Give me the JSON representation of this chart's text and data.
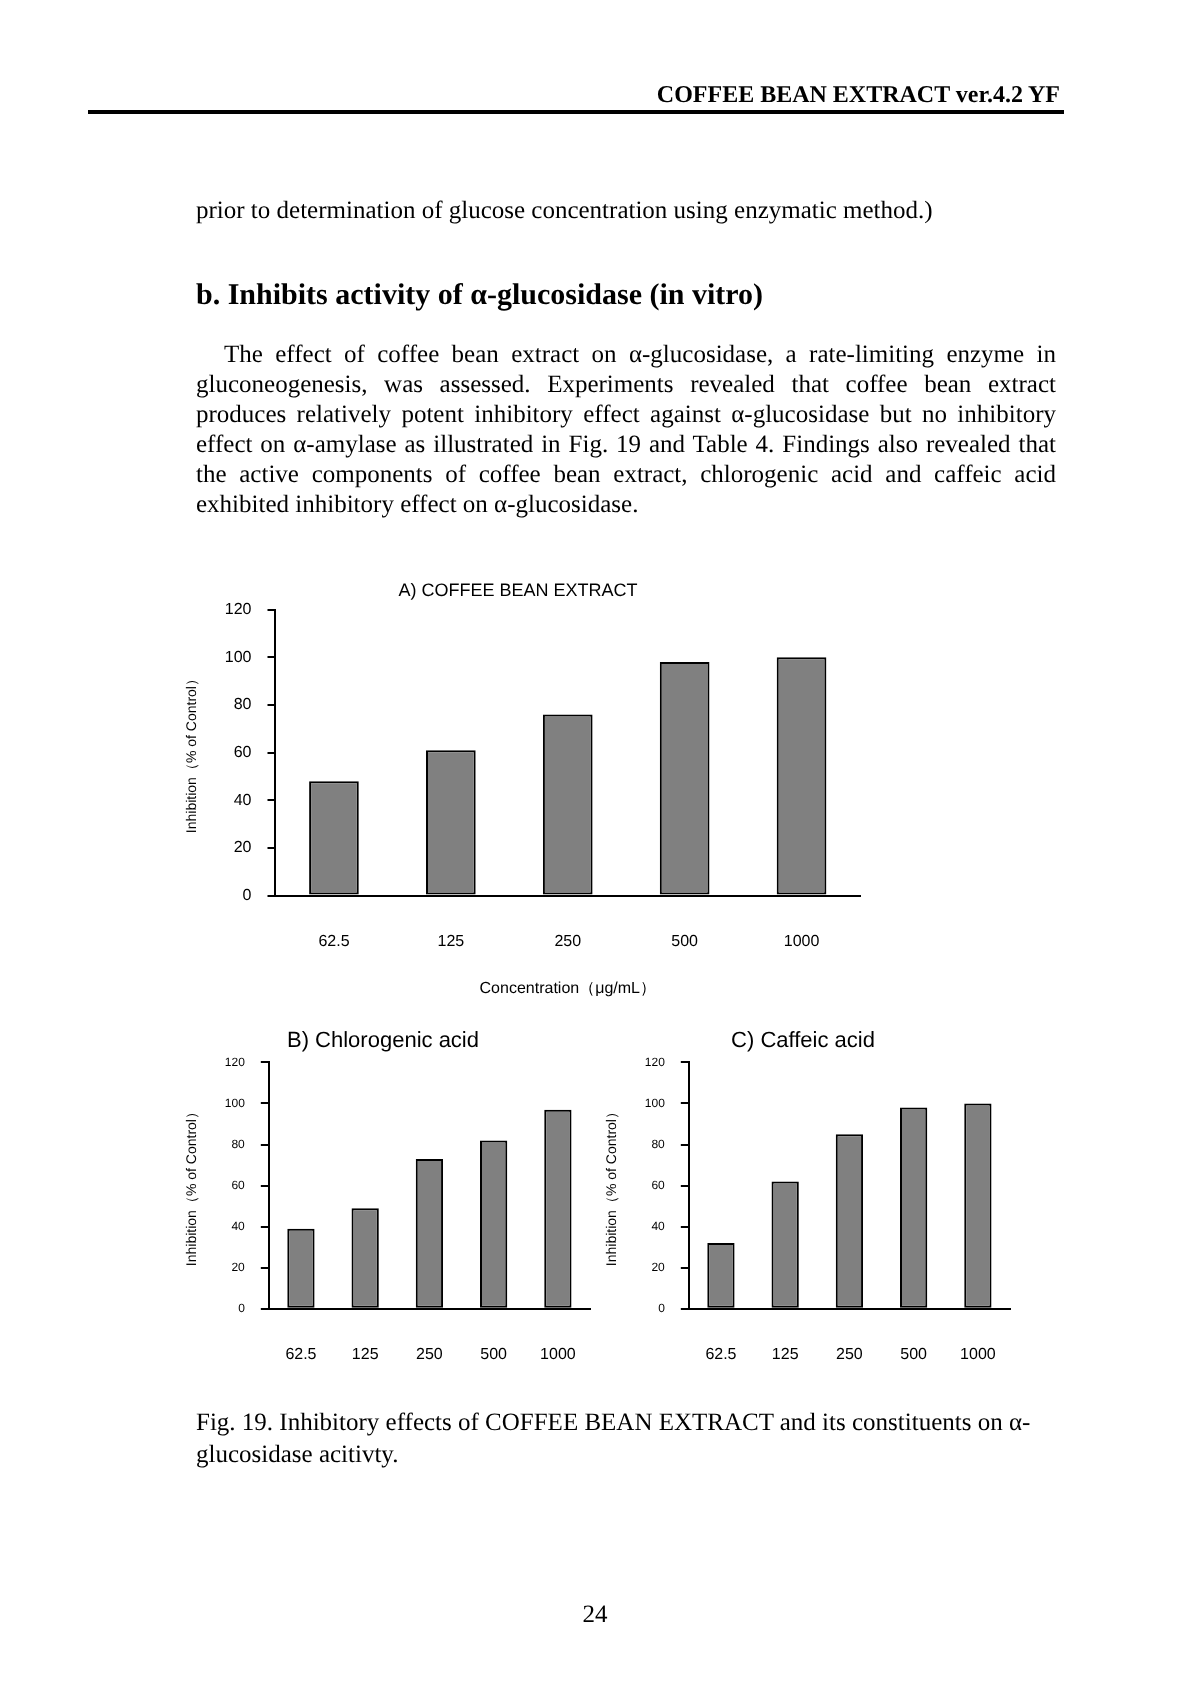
{
  "chart_data": [
    {
      "type": "bar",
      "title": "A) COFFEE BEAN EXTRACT",
      "xlabel": "Concentration（μg/mL）",
      "ylabel": "Inhibition（% of Control）",
      "categories": [
        "62.5",
        "125",
        "250",
        "500",
        "1000"
      ],
      "values": [
        48,
        61,
        76,
        98,
        100
      ],
      "color": "#808080",
      "ylim": [
        0,
        120
      ],
      "yticks": [
        0,
        20,
        40,
        60,
        80,
        100,
        120
      ],
      "annotations": [
        "COFFEE BEAN EXTRACT ver.4.2 YF",
        "prior to determination of glucose concentration using enzymatic method.)",
        "b.  Inhibits activity of  α-glucosidase (in vitro)",
        "The effect of coffee bean extract on α-glucosidase, a rate-limiting enzyme in gluconeogenesis, was assessed. Experiments revealed that coffee bean extract produces relatively potent inhibitory effect against α-glucosidase but no inhibitory effect on α-amylase as illustrated in Fig. 19 and Table 4. Findings also revealed that the active components of coffee bean extract, chlorogenic acid and caffeic acid exhibited inhibitory effect on α-glucosidase."
      ]
    },
    {
      "type": "bar",
      "title": "B) Chlorogenic acid",
      "ylabel": "Inhibition（% of Control）",
      "categories": [
        "62.5",
        "125",
        "250",
        "500",
        "1000"
      ],
      "values": [
        39,
        49,
        73,
        82,
        97
      ],
      "color": "#808080",
      "ylim": [
        0,
        120
      ],
      "yticks": [
        0,
        20,
        40,
        60,
        80,
        100,
        120
      ]
    },
    {
      "type": "bar",
      "title": "C) Caffeic acid",
      "ylabel": "Inhibition（% of Control）",
      "categories": [
        "62.5",
        "125",
        "250",
        "500",
        "1000"
      ],
      "values": [
        32,
        62,
        85,
        98,
        100
      ],
      "color": "#808080",
      "ylim": [
        0,
        120
      ],
      "yticks": [
        0,
        20,
        40,
        60,
        80,
        100,
        120
      ],
      "annotations": [
        "Fig. 19. Inhibitory effects of COFFEE BEAN EXTRACT and its constituents on α-glucosidase acitivty.",
        "24"
      ]
    }
  ]
}
